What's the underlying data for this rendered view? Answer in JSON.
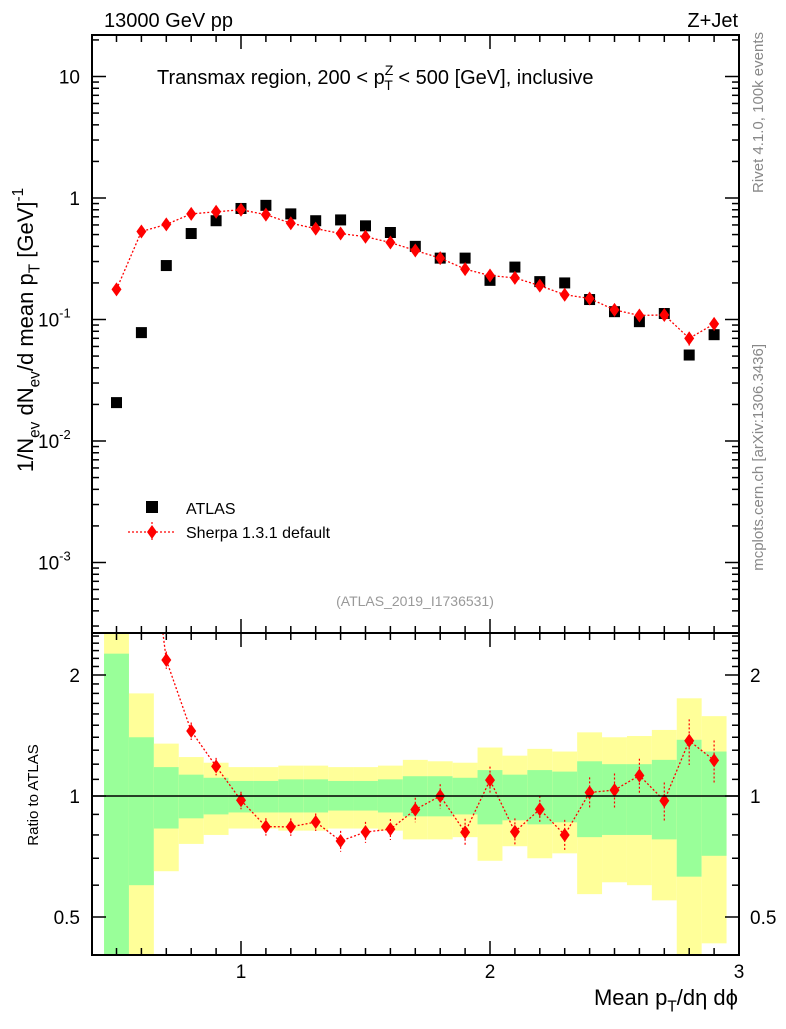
{
  "chart_data": {
    "type": "scatter",
    "header_left": "13000 GeV pp",
    "header_right": "Z+Jet",
    "title": [
      {
        "t": "Transmax region, 200 < p",
        "s": ""
      },
      {
        "t": "Z",
        "s": "sup"
      },
      {
        "t": "T",
        "s": "sub"
      },
      {
        "t": " < 500 [GeV], inclusive",
        "s": ""
      }
    ],
    "ylabel": [
      {
        "t": "1/N",
        "s": ""
      },
      {
        "t": "ev",
        "s": "sub"
      },
      {
        "t": " dN",
        "s": ""
      },
      {
        "t": "ev",
        "s": "sub"
      },
      {
        "t": "/d mean p",
        "s": ""
      },
      {
        "t": "T",
        "s": "sub"
      },
      {
        "t": " [GeV]",
        "s": ""
      },
      {
        "t": "-1",
        "s": "sup"
      }
    ],
    "xlabel": [
      {
        "t": "Mean p",
        "s": ""
      },
      {
        "t": "T",
        "s": "sub"
      },
      {
        "t": "/dη dϕ",
        "s": ""
      }
    ],
    "ratio_ylabel": "Ratio to ATLAS",
    "side_text_top": "Rivet 4.1.0,  100k events",
    "side_text_bottom": "mcplots.cern.ch [arXiv:1306.3436]",
    "analysis_id": "(ATLAS_2019_I1736531)",
    "xlim": [
      0.4,
      3.0
    ],
    "ylim": [
      0.00026,
      22
    ],
    "ratio_ylim": [
      0.4,
      2.54
    ],
    "yscale": "log",
    "x_ticks": [
      {
        "v": 1,
        "label": "1"
      },
      {
        "v": 2,
        "label": "2"
      },
      {
        "v": 3,
        "label": "3"
      }
    ],
    "y_ticks": [
      {
        "v": 10,
        "base": "10",
        "exp": ""
      },
      {
        "v": 1,
        "base": "1",
        "exp": ""
      },
      {
        "v": 0.1,
        "base": "10",
        "exp": "-1"
      },
      {
        "v": 0.01,
        "base": "10",
        "exp": "-2"
      },
      {
        "v": 0.001,
        "base": "10",
        "exp": "-3"
      }
    ],
    "ratio_ticks": [
      {
        "v": 2,
        "label": "2"
      },
      {
        "v": 1,
        "label": "1"
      },
      {
        "v": 0.5,
        "label": "0.5"
      }
    ],
    "legend_position": "bottom-left",
    "x": [
      0.5,
      0.6,
      0.7,
      0.8,
      0.9,
      1.0,
      1.1,
      1.2,
      1.3,
      1.4,
      1.5,
      1.6,
      1.7,
      1.8,
      1.9,
      2.0,
      2.1,
      2.2,
      2.3,
      2.4,
      2.5,
      2.6,
      2.7,
      2.8,
      2.9
    ],
    "bin_width": 0.1,
    "series": [
      {
        "name": "ATLAS",
        "color": "#000000",
        "marker": "square",
        "values": [
          0.0207,
          0.078,
          0.278,
          0.51,
          0.65,
          0.82,
          0.87,
          0.74,
          0.65,
          0.66,
          0.59,
          0.52,
          0.4,
          0.32,
          0.32,
          0.21,
          0.27,
          0.205,
          0.2,
          0.146,
          0.116,
          0.096,
          0.112,
          0.051,
          0.075
        ],
        "band_stat_up": [
          2.26,
          1.4,
          1.18,
          1.13,
          1.11,
          1.09,
          1.09,
          1.1,
          1.1,
          1.09,
          1.09,
          1.1,
          1.12,
          1.12,
          1.11,
          1.16,
          1.13,
          1.16,
          1.15,
          1.22,
          1.2,
          1.2,
          1.23,
          1.38,
          1.29
        ],
        "band_stat_down": [
          0.3,
          0.6,
          0.83,
          0.88,
          0.9,
          0.91,
          0.91,
          0.91,
          0.91,
          0.92,
          0.92,
          0.91,
          0.89,
          0.89,
          0.9,
          0.85,
          0.87,
          0.85,
          0.86,
          0.79,
          0.8,
          0.8,
          0.78,
          0.63,
          0.71
        ],
        "band_total_up": [
          2.6,
          1.8,
          1.35,
          1.25,
          1.21,
          1.18,
          1.18,
          1.19,
          1.19,
          1.18,
          1.18,
          1.19,
          1.23,
          1.22,
          1.21,
          1.32,
          1.26,
          1.31,
          1.29,
          1.44,
          1.4,
          1.41,
          1.46,
          1.75,
          1.58
        ],
        "band_total_down": [
          0.3,
          0.3,
          0.65,
          0.76,
          0.8,
          0.83,
          0.83,
          0.82,
          0.82,
          0.83,
          0.83,
          0.82,
          0.78,
          0.78,
          0.79,
          0.69,
          0.75,
          0.7,
          0.72,
          0.57,
          0.61,
          0.6,
          0.55,
          0.3,
          0.43
        ]
      },
      {
        "name": "Sherpa 1.3.1 default",
        "color": "#ff0000",
        "marker": "diamond",
        "values": [
          0.177,
          0.53,
          0.606,
          0.74,
          0.77,
          0.8,
          0.73,
          0.62,
          0.56,
          0.51,
          0.48,
          0.43,
          0.37,
          0.32,
          0.26,
          0.23,
          0.22,
          0.19,
          0.16,
          0.149,
          0.12,
          0.108,
          0.109,
          0.07,
          0.092
        ],
        "rel_err": [
          0.07,
          0.05,
          0.05,
          0.05,
          0.05,
          0.05,
          0.05,
          0.05,
          0.05,
          0.06,
          0.06,
          0.06,
          0.07,
          0.07,
          0.08,
          0.08,
          0.08,
          0.08,
          0.09,
          0.09,
          0.1,
          0.1,
          0.11,
          0.13,
          0.12
        ]
      }
    ]
  }
}
